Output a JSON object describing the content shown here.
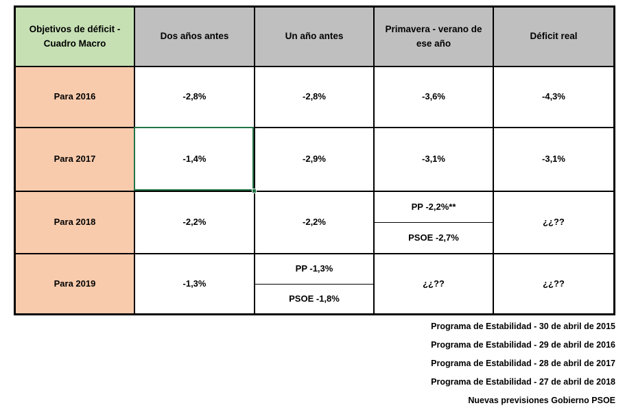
{
  "colors": {
    "corner_header_bg": "#c6e0b4",
    "column_header_bg": "#bfbfbf",
    "row_label_bg": "#f8cbad",
    "border": "#000000",
    "selection_green": "#217346",
    "text": "#000000",
    "background": "#ffffff"
  },
  "table": {
    "corner_header": "Objetivos de déficit - Cuadro Macro",
    "column_headers": [
      "Dos años antes",
      "Un año antes",
      "Primavera - verano de ese año",
      "Déficit real"
    ],
    "rows": [
      {
        "label": "Para 2016",
        "cells": [
          {
            "value": "-2,8%"
          },
          {
            "value": "-2,8%"
          },
          {
            "value": "-3,6%"
          },
          {
            "value": "-4,3%"
          }
        ]
      },
      {
        "label": "Para 2017",
        "cells": [
          {
            "value": "-1,4%",
            "selected": true
          },
          {
            "value": "-2,9%"
          },
          {
            "value": "-3,1%"
          },
          {
            "value": "-3,1%"
          }
        ]
      },
      {
        "label": "Para 2018",
        "cells": [
          {
            "value": "-2,2%"
          },
          {
            "value": "-2,2%"
          },
          {
            "split": {
              "top": "PP -2,2%**",
              "bottom": "PSOE -2,7%"
            }
          },
          {
            "value": "¿¿??"
          }
        ]
      },
      {
        "label": "Para 2019",
        "cells": [
          {
            "value": "-1,3%"
          },
          {
            "split": {
              "top": "PP -1,3%",
              "bottom": "PSOE -1,8%"
            }
          },
          {
            "value": "¿¿??"
          },
          {
            "value": "¿¿??"
          }
        ]
      }
    ]
  },
  "footer": {
    "lines": [
      "Programa de Estabilidad - 30 de abril de 2015",
      "Programa de Estabilidad - 29 de abril de 2016",
      "Programa de Estabilidad - 28 de abril de 2017",
      "Programa de Estabilidad - 27 de abril de 2018",
      "Nuevas previsiones Gobierno PSOE"
    ]
  }
}
